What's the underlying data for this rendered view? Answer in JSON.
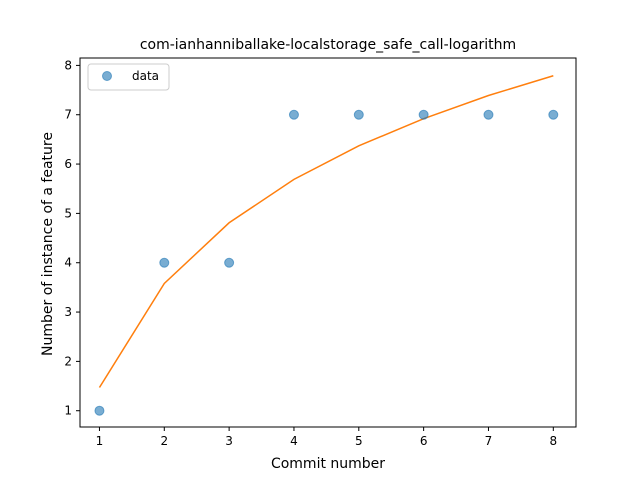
{
  "chart_data": {
    "type": "scatter",
    "title": "com-ianhanniballake-localstorage_safe_call-logarithm",
    "xlabel": "Commit number",
    "ylabel": "Number of instance of a feature",
    "xlim": [
      0.7,
      8.35
    ],
    "ylim": [
      0.67,
      8.15
    ],
    "x_ticks": [
      1,
      2,
      3,
      4,
      5,
      6,
      7,
      8
    ],
    "y_ticks": [
      1,
      2,
      3,
      4,
      5,
      6,
      7,
      8
    ],
    "legend": {
      "position": "top-left",
      "entries": [
        "data"
      ]
    },
    "grid": false,
    "series": [
      {
        "name": "data",
        "kind": "scatter",
        "color": "#1f77b4",
        "x": [
          1,
          2,
          3,
          4,
          5,
          6,
          7,
          8
        ],
        "y": [
          1,
          4,
          4,
          7,
          7,
          7,
          7,
          7
        ]
      },
      {
        "kind": "line",
        "color": "#ff7f0e",
        "x": [
          1,
          2,
          3,
          4,
          5,
          6,
          7,
          8
        ],
        "y": [
          1.47,
          3.58,
          4.81,
          5.69,
          6.37,
          6.92,
          7.39,
          7.79
        ]
      }
    ]
  }
}
